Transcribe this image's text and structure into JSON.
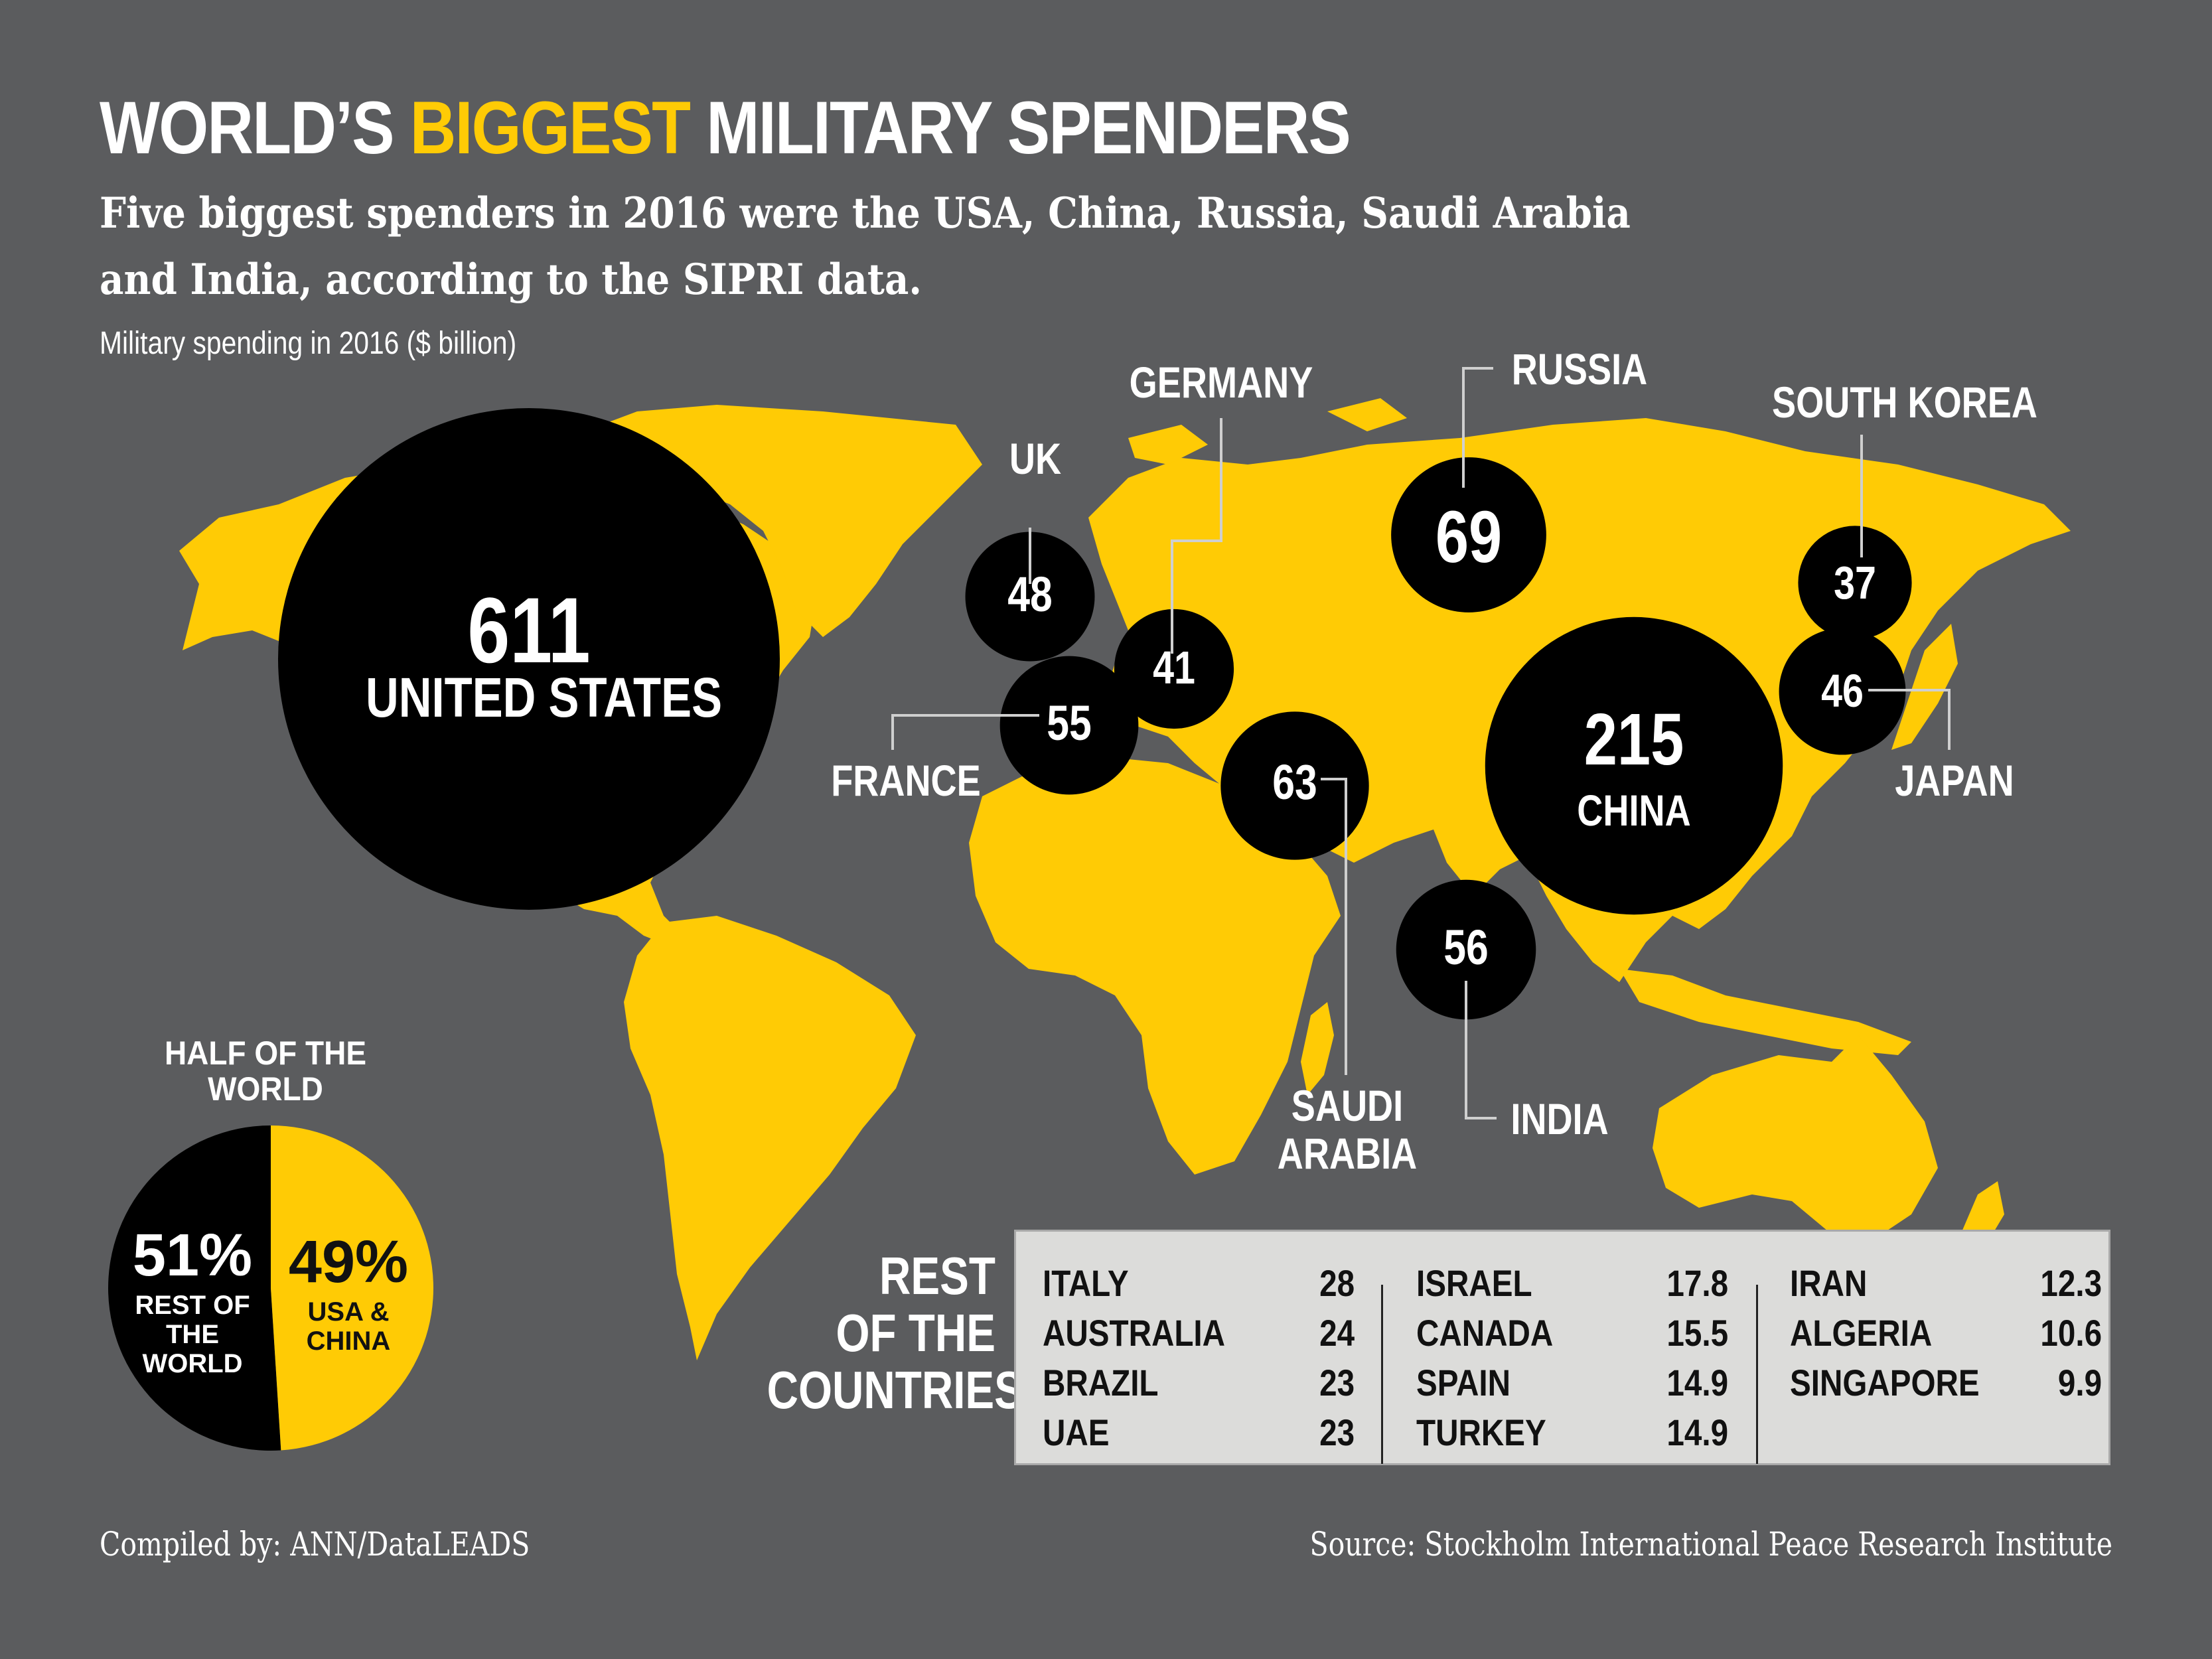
{
  "header": {
    "title_part1": "WORLD’S",
    "title_highlight": "BIGGEST",
    "title_part2": "MILITARY SPENDERS",
    "subtitle": "Five biggest spenders in 2016 were the USA, China, Russia, Saudi Arabia and India, according to the SIPRI data.",
    "unit_note": "Military spending in 2016 ($ billion)"
  },
  "colors": {
    "background": "#5b5c5e",
    "land": "#ffcb05",
    "bubble": "#000000",
    "text": "#ffffff",
    "table_bg": "#dcdcda"
  },
  "chart_data": [
    {
      "type": "bubble-map",
      "title": "WORLD’S BIGGEST MILITARY SPENDERS",
      "unit": "$ billion",
      "year": 2016,
      "points": [
        {
          "country": "UNITED STATES",
          "value": 611
        },
        {
          "country": "CHINA",
          "value": 215
        },
        {
          "country": "RUSSIA",
          "value": 69
        },
        {
          "country": "SAUDI ARABIA",
          "value": 63
        },
        {
          "country": "INDIA",
          "value": 56
        },
        {
          "country": "FRANCE",
          "value": 55
        },
        {
          "country": "UK",
          "value": 48
        },
        {
          "country": "JAPAN",
          "value": 46
        },
        {
          "country": "GERMANY",
          "value": 41
        },
        {
          "country": "SOUTH KOREA",
          "value": 37
        }
      ]
    },
    {
      "type": "pie",
      "title": "HALF OF THE WORLD",
      "slices": [
        {
          "label": "REST OF THE WORLD",
          "value": 51,
          "display": "51%"
        },
        {
          "label": "USA & CHINA",
          "value": 49,
          "display": "49%"
        }
      ]
    },
    {
      "type": "table",
      "title": "REST OF THE COUNTRIES",
      "columns": [
        [
          {
            "country": "ITALY",
            "value": "28"
          },
          {
            "country": "AUSTRALIA",
            "value": "24"
          },
          {
            "country": "BRAZIL",
            "value": "23"
          },
          {
            "country": "UAE",
            "value": "23"
          }
        ],
        [
          {
            "country": "ISRAEL",
            "value": "17.8"
          },
          {
            "country": "CANADA",
            "value": "15.5"
          },
          {
            "country": "SPAIN",
            "value": "14.9"
          },
          {
            "country": "TURKEY",
            "value": "14.9"
          }
        ],
        [
          {
            "country": "IRAN",
            "value": "12.3"
          },
          {
            "country": "ALGERIA",
            "value": "10.6"
          },
          {
            "country": "SINGAPORE",
            "value": "9.9"
          }
        ]
      ]
    }
  ],
  "labels": {
    "us_name": "UNITED STATES",
    "china_name": "CHINA",
    "russia": "RUSSIA",
    "germany": "GERMANY",
    "uk": "UK",
    "france": "FRANCE",
    "saudi_line1": "SAUDI",
    "saudi_line2": "ARABIA",
    "india": "INDIA",
    "south_korea": "SOUTH KOREA",
    "japan": "JAPAN",
    "pie_title_line1": "HALF OF THE",
    "pie_title_line2": "WORLD",
    "pie_rest_line1": "REST OF",
    "pie_rest_line2": "THE",
    "pie_rest_line3": "WORLD",
    "pie_usa_line1": "USA &",
    "pie_usa_line2": "CHINA",
    "rest_line1": "REST",
    "rest_line2": "OF THE",
    "rest_line3": "COUNTRIES"
  },
  "footer": {
    "compiled": "Compiled by: ANN/DataLEADS",
    "source": "Source: Stockholm International Peace Research Institute"
  }
}
